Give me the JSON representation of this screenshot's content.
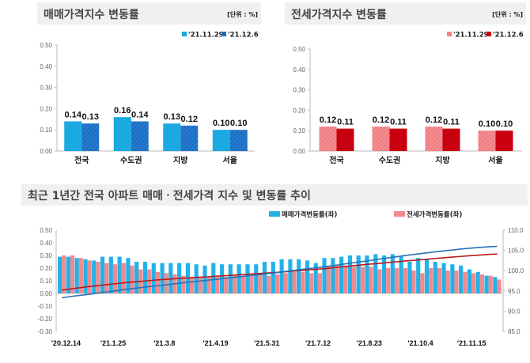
{
  "colors": {
    "sale_prev": "#1aa9e0",
    "sale_curr": "#1a6fc4",
    "jeonse_prev": "#f07f84",
    "jeonse_curr": "#c8000f",
    "sale_bar": "#22b2e8",
    "jeonse_bar": "#f08a8e",
    "sale_index_line": "#2a6fb5",
    "jeonse_index_line": "#b81c1c",
    "title_bg": "#f0f0f0"
  },
  "chart_data": [
    {
      "type": "bar",
      "title": "매매가격지수 변동률",
      "unit": "[단위 : %]",
      "categories": [
        "전국",
        "수도권",
        "지방",
        "서울"
      ],
      "series": [
        {
          "name": "'21.11.29",
          "values": [
            0.14,
            0.16,
            0.13,
            0.1
          ]
        },
        {
          "name": "'21.12.6",
          "values": [
            0.13,
            0.14,
            0.12,
            0.1
          ]
        }
      ],
      "yticks": [
        "0.00",
        "0.10",
        "0.20",
        "0.30",
        "0.40",
        "0.50"
      ],
      "ylim": [
        0,
        0.5
      ],
      "data_labels": [
        [
          "0.14",
          "0.16",
          "0.13",
          "0.10"
        ],
        [
          "0.13",
          "0.14",
          "0.12",
          "0.10"
        ]
      ],
      "legend": "top-right"
    },
    {
      "type": "bar",
      "title": "전세가격지수 변동률",
      "unit": "[단위 : %]",
      "categories": [
        "전국",
        "수도권",
        "지방",
        "서울"
      ],
      "series": [
        {
          "name": "'21.11.29",
          "values": [
            0.12,
            0.12,
            0.12,
            0.1
          ]
        },
        {
          "name": "'21.12.6",
          "values": [
            0.11,
            0.11,
            0.11,
            0.1
          ]
        }
      ],
      "yticks": [
        "0.00",
        "0.10",
        "0.20",
        "0.30",
        "0.40",
        "0.50"
      ],
      "ylim": [
        0,
        0.5
      ],
      "data_labels": [
        [
          "0.12",
          "0.12",
          "0.12",
          "0.10"
        ],
        [
          "0.11",
          "0.11",
          "0.11",
          "0.10"
        ]
      ],
      "legend": "top-right"
    },
    {
      "type": "bar+line",
      "title": "최근 1년간 전국 아파트 매매ㆍ전세가격 지수 및 변동률 추이",
      "xtick_labels": [
        "'20.12.14",
        "'21.1.25",
        "'21.3.8",
        "'21.4.19",
        "'21.5.31",
        "'21.7.12",
        "'21.8.23",
        "'21.10.4",
        "'21.11.15"
      ],
      "x_tick_every": 6,
      "yticks_left": [
        "0.50",
        "0.40",
        "0.30",
        "0.20",
        "0.10",
        "0.00",
        "-0.10",
        "-0.20",
        "-0.30"
      ],
      "ylim_left": [
        -0.3,
        0.5
      ],
      "yticks_right": [
        "110.0",
        "105.0",
        "100.0",
        "95.0",
        "90.0",
        "85.0"
      ],
      "ylim_right": [
        85,
        110
      ],
      "legend": "top-right",
      "series": [
        {
          "name": "매매가격변동률(좌)",
          "kind": "bar",
          "axis": "left",
          "values": [
            0.29,
            0.29,
            0.28,
            0.27,
            0.26,
            0.29,
            0.29,
            0.29,
            0.28,
            0.25,
            0.25,
            0.24,
            0.24,
            0.24,
            0.24,
            0.24,
            0.23,
            0.22,
            0.24,
            0.23,
            0.23,
            0.23,
            0.23,
            0.23,
            0.25,
            0.25,
            0.27,
            0.27,
            0.27,
            0.26,
            0.24,
            0.28,
            0.28,
            0.29,
            0.3,
            0.3,
            0.3,
            0.31,
            0.3,
            0.31,
            0.29,
            0.25,
            0.28,
            0.27,
            0.25,
            0.24,
            0.23,
            0.22,
            0.19,
            0.17,
            0.14,
            0.13
          ]
        },
        {
          "name": "전세가격변동률(좌)",
          "kind": "bar",
          "axis": "left",
          "values": [
            0.3,
            0.3,
            0.28,
            0.26,
            0.25,
            0.24,
            0.23,
            0.24,
            0.22,
            0.19,
            0.19,
            0.17,
            0.16,
            0.15,
            0.14,
            0.13,
            0.13,
            0.13,
            0.13,
            0.13,
            0.14,
            0.14,
            0.14,
            0.15,
            0.14,
            0.15,
            0.16,
            0.17,
            0.17,
            0.16,
            0.16,
            0.21,
            0.22,
            0.22,
            0.21,
            0.21,
            0.21,
            0.19,
            0.2,
            0.2,
            0.2,
            0.18,
            0.16,
            0.2,
            0.2,
            0.18,
            0.18,
            0.17,
            0.16,
            0.15,
            0.14,
            0.11
          ]
        },
        {
          "kind": "line",
          "axis": "right",
          "index_start": 93.3,
          "index_end": 106.0
        },
        {
          "kind": "line",
          "axis": "right",
          "index_start": 95.2,
          "index_end": 104.1
        }
      ]
    }
  ]
}
